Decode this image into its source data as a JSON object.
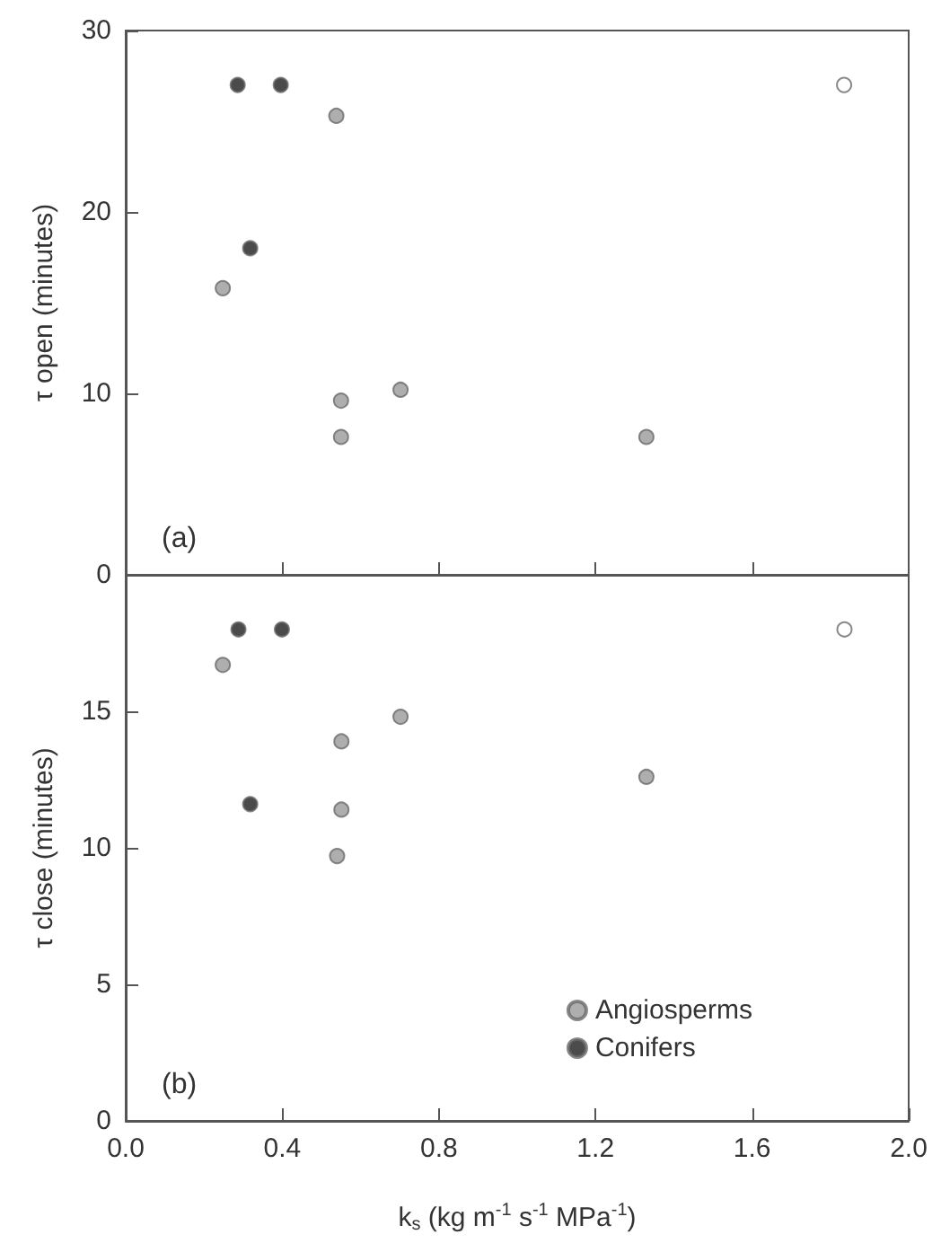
{
  "chart_data": [
    {
      "type": "scatter",
      "ylabel": "τ open (minutes)",
      "xlim": [
        0,
        2
      ],
      "xticks": [
        0.4,
        0.8,
        1.2,
        1.6
      ],
      "ylim": [
        0,
        30
      ],
      "yticks": [
        0,
        10,
        20,
        30
      ],
      "tick_labels": "y",
      "marker": "circle",
      "grid": false,
      "legend": false,
      "annotations": [
        "(a)"
      ],
      "series": [
        {
          "color": "#9a9a9a",
          "x": [
            0.538,
            0.248,
            0.55,
            0.702,
            0.55,
            1.33
          ],
          "values": [
            25.3,
            15.8,
            9.6,
            10.2,
            7.6,
            7.6
          ]
        },
        {
          "color": "#1e1e1e",
          "x": [
            0.286,
            0.396,
            0.318
          ],
          "values": [
            27,
            27,
            18
          ]
        },
        {
          "color": "#ffffff",
          "x": [
            1.835
          ],
          "values": [
            27
          ]
        }
      ]
    },
    {
      "type": "scatter",
      "xlabel": "k$_{s}$ (kg m$^{-1}$ s$^{-1}$ MPa$^{-1}$)",
      "ylabel": "τ close (minutes)",
      "xlim": [
        0,
        2
      ],
      "xticks": [
        {
          "value": 0,
          "label": "0.0"
        },
        0.4,
        0.8,
        1.2,
        1.6,
        {
          "value": 2,
          "label": "2.0"
        }
      ],
      "ylim": [
        0,
        20
      ],
      "yticks": [
        0,
        5,
        10,
        15,
        {
          "value": 20,
          "label": null
        }
      ],
      "marker": "circle",
      "grid": false,
      "legend": "bottom right",
      "annotations": [
        "(b)"
      ],
      "series": [
        {
          "name": "Angiosperms",
          "color": "#9a9a9a",
          "x": [
            0.248,
            0.702,
            0.551,
            0.551,
            0.54,
            1.33
          ],
          "values": [
            16.7,
            14.8,
            13.9,
            11.4,
            9.7,
            12.6
          ]
        },
        {
          "name": "Conifers",
          "color": "#1e1e1e",
          "x": [
            0.288,
            0.399,
            0.318
          ],
          "values": [
            18,
            18,
            11.6
          ]
        },
        {
          "color": "#ffffff",
          "x": [
            1.836
          ],
          "values": [
            18
          ]
        }
      ]
    }
  ]
}
